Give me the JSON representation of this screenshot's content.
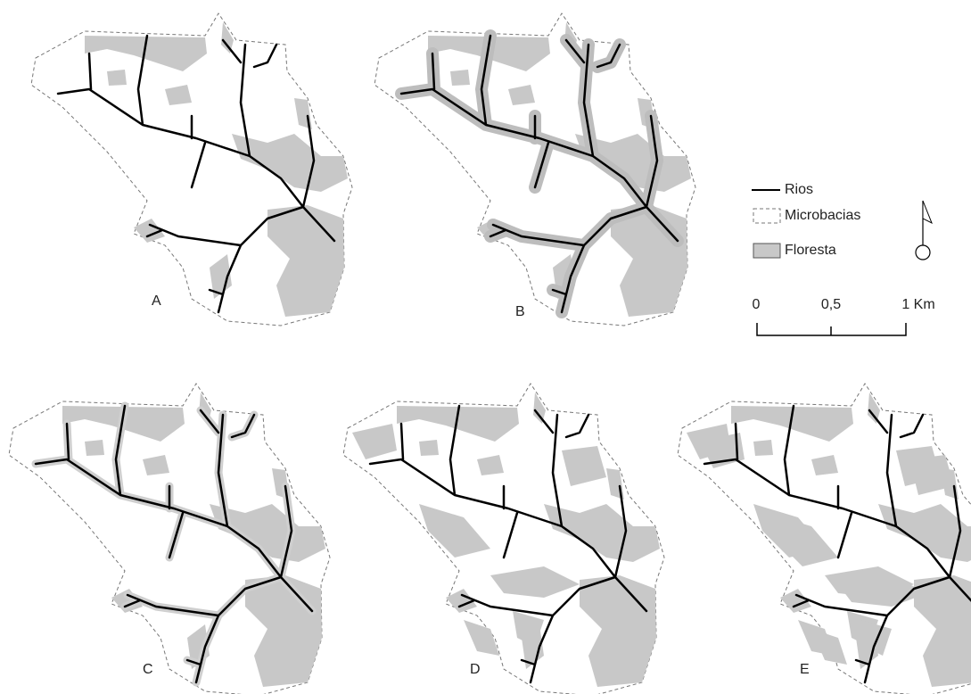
{
  "panels": [
    {
      "label": "A"
    },
    {
      "label": "B"
    },
    {
      "label": "C"
    },
    {
      "label": "D"
    },
    {
      "label": "E"
    }
  ],
  "legend": [
    {
      "label": "Rios"
    },
    {
      "label": "Microbacias"
    },
    {
      "label": "Floresta"
    }
  ],
  "scale_bar": {
    "labels": [
      "0",
      "0,5",
      "1 Km"
    ]
  }
}
